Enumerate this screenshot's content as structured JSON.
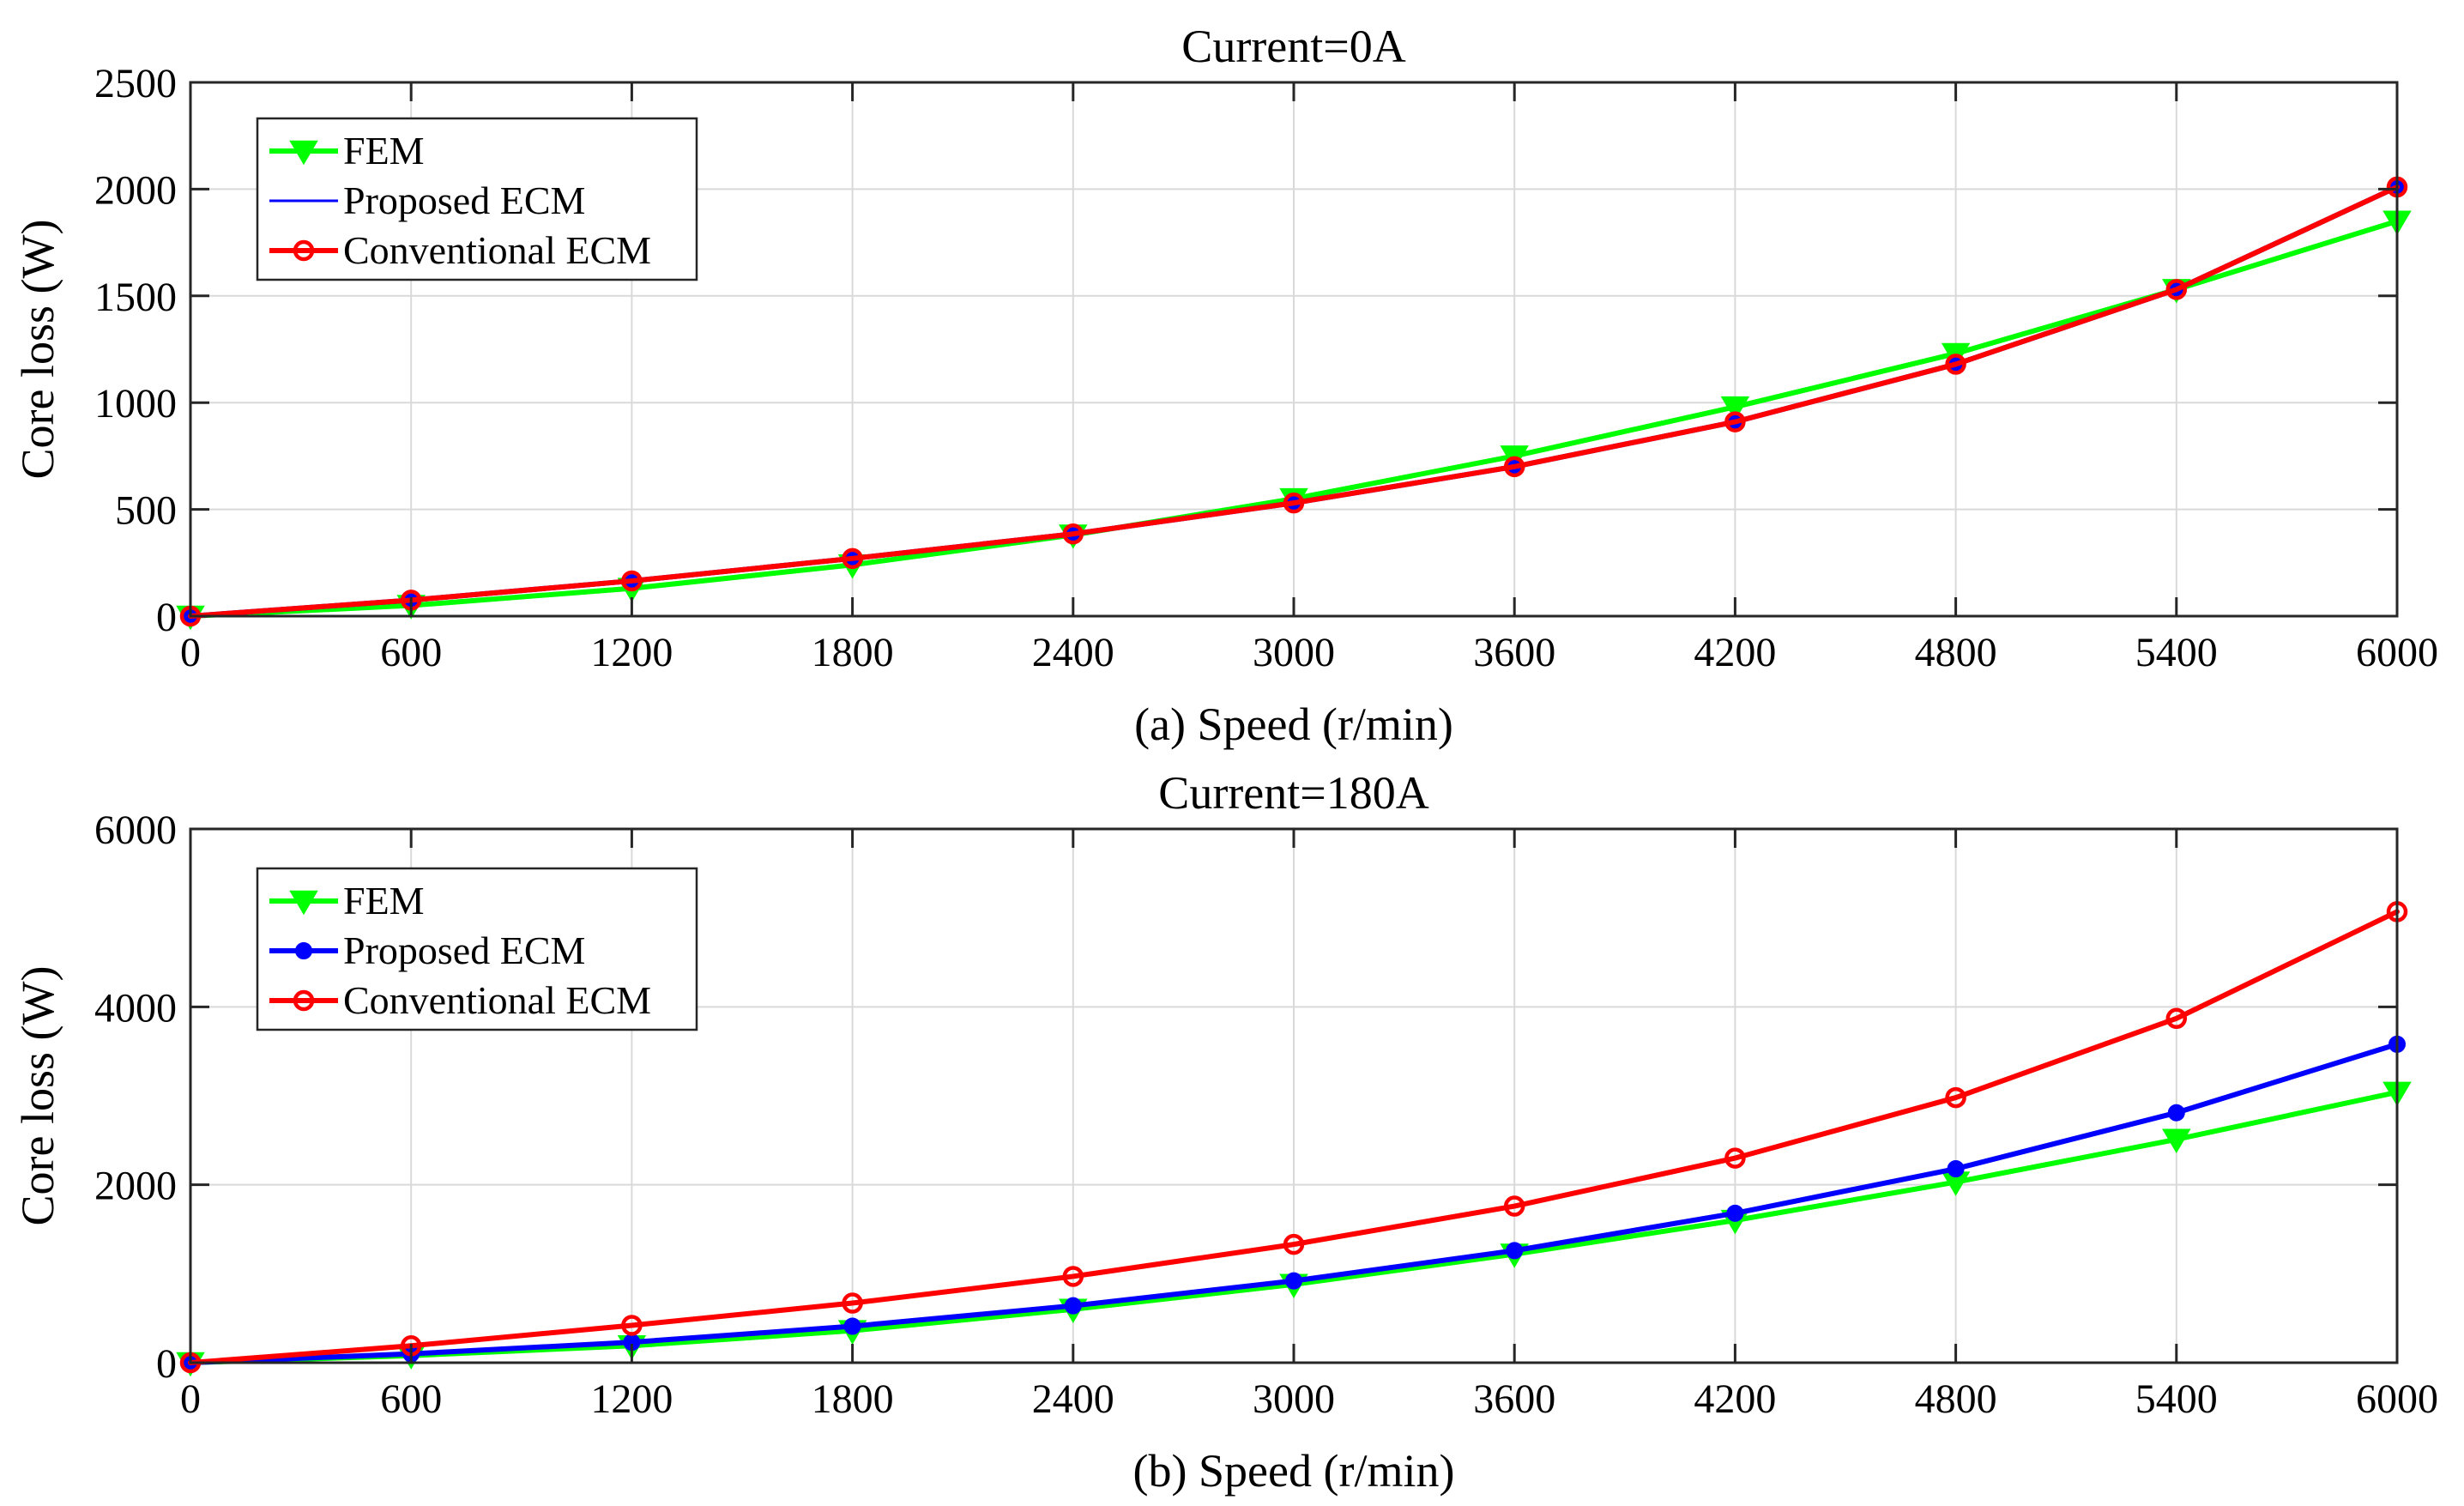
{
  "chart_data": [
    {
      "type": "line",
      "title": "Current=0A",
      "xlabel": "(a) Speed (r/min)",
      "ylabel": "Core loss (W)",
      "x": [
        0,
        600,
        1200,
        1800,
        2400,
        3000,
        3600,
        4200,
        4800,
        5400,
        6000
      ],
      "xticks": [
        "0",
        "600",
        "1200",
        "1800",
        "2400",
        "3000",
        "3600",
        "4200",
        "4800",
        "5400",
        "6000"
      ],
      "yticks": [
        "0",
        "500",
        "1000",
        "1500",
        "2000",
        "2500"
      ],
      "xlim": [
        0,
        6000
      ],
      "ylim": [
        0,
        2500
      ],
      "grid": true,
      "legend": "top-left",
      "series": [
        {
          "name": "FEM",
          "color": "#00ff00",
          "marker": "triangle-down",
          "values": [
            0,
            50,
            130,
            240,
            380,
            550,
            750,
            980,
            1230,
            1530,
            1850
          ]
        },
        {
          "name": "Proposed ECM",
          "color": "#0000ff",
          "marker": "circle-filled",
          "values": [
            0,
            75,
            165,
            270,
            385,
            530,
            700,
            910,
            1180,
            1530,
            2010
          ]
        },
        {
          "name": "Conventional ECM",
          "color": "#ff0000",
          "marker": "circle-open",
          "values": [
            0,
            75,
            165,
            270,
            385,
            530,
            700,
            910,
            1180,
            1530,
            2010
          ]
        }
      ]
    },
    {
      "type": "line",
      "title": "Current=180A",
      "xlabel": "(b) Speed (r/min)",
      "ylabel": "Core loss (W)",
      "x": [
        0,
        600,
        1200,
        1800,
        2400,
        3000,
        3600,
        4200,
        4800,
        5400,
        6000
      ],
      "xticks": [
        "0",
        "600",
        "1200",
        "1800",
        "2400",
        "3000",
        "3600",
        "4200",
        "4800",
        "5400",
        "6000"
      ],
      "yticks": [
        "0",
        "2000",
        "4000",
        "6000"
      ],
      "xlim": [
        0,
        6000
      ],
      "ylim": [
        0,
        6000
      ],
      "grid": true,
      "legend": "top-left",
      "series": [
        {
          "name": "FEM",
          "color": "#00ff00",
          "marker": "triangle-down",
          "values": [
            0,
            80,
            190,
            360,
            600,
            880,
            1220,
            1600,
            2030,
            2510,
            3040
          ]
        },
        {
          "name": "Proposed ECM",
          "color": "#0000ff",
          "marker": "circle-filled",
          "values": [
            0,
            100,
            230,
            410,
            640,
            920,
            1260,
            1680,
            2180,
            2810,
            3580
          ]
        },
        {
          "name": "Conventional ECM",
          "color": "#ff0000",
          "marker": "circle-open",
          "values": [
            0,
            190,
            420,
            670,
            970,
            1330,
            1760,
            2300,
            2980,
            3870,
            5070
          ]
        }
      ]
    }
  ]
}
